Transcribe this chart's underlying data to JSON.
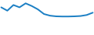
{
  "values": [
    28,
    18,
    35,
    28,
    40,
    32,
    22,
    8,
    3,
    1,
    0.5,
    0.5,
    1,
    2,
    5,
    12
  ],
  "line_color": "#1b7fc4",
  "line_width": 1.4,
  "background_color": "#ffffff",
  "xlim": [
    -0.2,
    15.2
  ],
  "ylim": [
    -55,
    50
  ]
}
